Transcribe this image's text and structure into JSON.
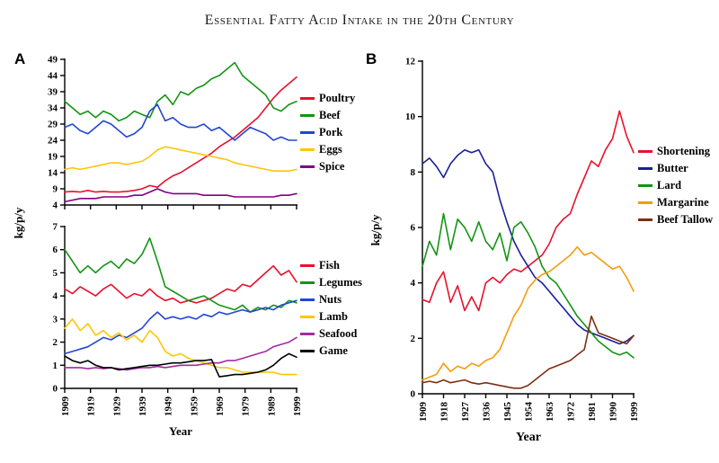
{
  "title": "Essential Fatty Acid Intake in the 20th Century",
  "panels": {
    "a_label": "A",
    "b_label": "B"
  },
  "colors": {
    "red": "#e8112d",
    "green": "#149414",
    "blue": "#2546d2",
    "navy": "#1a2099",
    "gold": "#fdc608",
    "orange": "#f49d0c",
    "purple": "#800080",
    "magenta": "#a12ca1",
    "black": "#000000",
    "brown": "#7d3011"
  },
  "chart_data": [
    {
      "id": "a_top",
      "panel": "A",
      "type": "line",
      "ylabel": "kg/p/y",
      "xlabel": "Year",
      "xlim": [
        1909,
        1999
      ],
      "ylim": [
        4,
        49
      ],
      "yticks": [
        4,
        9,
        14,
        19,
        24,
        29,
        34,
        39,
        44,
        49
      ],
      "xticks": [
        1909,
        1919,
        1929,
        1939,
        1949,
        1959,
        1969,
        1979,
        1989,
        1999
      ],
      "legend_position": "right",
      "grid": false,
      "x": [
        1909,
        1912,
        1915,
        1918,
        1921,
        1924,
        1927,
        1930,
        1933,
        1936,
        1939,
        1942,
        1945,
        1948,
        1951,
        1954,
        1957,
        1960,
        1963,
        1966,
        1969,
        1972,
        1975,
        1978,
        1981,
        1984,
        1987,
        1990,
        1993,
        1996,
        1999
      ],
      "series": [
        {
          "name": "Poultry",
          "color": "#e8112d",
          "values": [
            8,
            8.2,
            8,
            8.5,
            8,
            8.2,
            8,
            8,
            8.2,
            8.5,
            9,
            10,
            9.5,
            11.5,
            13,
            14,
            15.5,
            17,
            18.5,
            20,
            22,
            23.5,
            25,
            27,
            29,
            31,
            34,
            37,
            39.5,
            41.5,
            43.5
          ]
        },
        {
          "name": "Beef",
          "color": "#149414",
          "values": [
            36,
            34,
            32,
            33,
            31,
            33,
            32,
            30,
            31,
            33,
            32,
            31,
            36,
            38,
            35,
            39,
            38,
            40,
            41,
            43,
            44,
            46,
            48,
            44,
            42,
            40,
            38,
            34,
            33,
            35,
            36
          ]
        },
        {
          "name": "Pork",
          "color": "#2546d2",
          "values": [
            28,
            29,
            27,
            26,
            28,
            30,
            29,
            27,
            25,
            26,
            28,
            33,
            35,
            30,
            31,
            29,
            28,
            28,
            29,
            27,
            28,
            26,
            24,
            26,
            28,
            27,
            26,
            24,
            25,
            24,
            24
          ]
        },
        {
          "name": "Eggs",
          "color": "#fdc608",
          "values": [
            15,
            15.5,
            15,
            15.5,
            16,
            16.5,
            17,
            17,
            16.5,
            17,
            17.5,
            19,
            21,
            22,
            21.5,
            21,
            20.5,
            20,
            19.5,
            19,
            18.5,
            18,
            17,
            16.5,
            16,
            15.5,
            15,
            14.5,
            14.5,
            14.5,
            15
          ]
        },
        {
          "name": "Spice",
          "color": "#800080",
          "values": [
            5,
            5.5,
            6,
            6,
            6,
            6.5,
            6.5,
            6.5,
            6.5,
            7,
            7,
            8,
            9,
            8,
            7.5,
            7.5,
            7.5,
            7.5,
            7,
            7,
            7,
            7,
            6.5,
            6.5,
            6.5,
            6.5,
            6.5,
            6.5,
            7,
            7,
            7.5
          ]
        }
      ]
    },
    {
      "id": "a_bottom",
      "panel": "A",
      "type": "line",
      "ylabel": "kg/p/y",
      "xlabel": "Year",
      "xlim": [
        1909,
        1999
      ],
      "ylim": [
        0,
        7
      ],
      "yticks": [
        0,
        1,
        2,
        3,
        4,
        5,
        6,
        7
      ],
      "xticks": [
        1909,
        1919,
        1929,
        1939,
        1949,
        1959,
        1969,
        1979,
        1989,
        1999
      ],
      "legend_position": "right",
      "grid": false,
      "x": [
        1909,
        1912,
        1915,
        1918,
        1921,
        1924,
        1927,
        1930,
        1933,
        1936,
        1939,
        1942,
        1945,
        1948,
        1951,
        1954,
        1957,
        1960,
        1963,
        1966,
        1969,
        1972,
        1975,
        1978,
        1981,
        1984,
        1987,
        1990,
        1993,
        1996,
        1999
      ],
      "series": [
        {
          "name": "Fish",
          "color": "#e8112d",
          "values": [
            4.3,
            4.1,
            4.4,
            4.2,
            4.0,
            4.3,
            4.5,
            4.2,
            3.9,
            4.1,
            4.0,
            4.3,
            4.0,
            3.8,
            3.9,
            3.7,
            3.8,
            3.7,
            3.8,
            3.9,
            4.1,
            4.3,
            4.2,
            4.5,
            4.4,
            4.7,
            5.0,
            5.3,
            4.9,
            5.1,
            4.6
          ]
        },
        {
          "name": "Legumes",
          "color": "#149414",
          "values": [
            6.0,
            5.5,
            5.0,
            5.3,
            5.0,
            5.3,
            5.5,
            5.2,
            5.6,
            5.4,
            5.8,
            6.5,
            5.5,
            4.4,
            4.2,
            4.0,
            3.8,
            3.9,
            4.0,
            3.8,
            3.6,
            3.5,
            3.4,
            3.6,
            3.3,
            3.5,
            3.4,
            3.6,
            3.5,
            3.8,
            3.7
          ]
        },
        {
          "name": "Nuts",
          "color": "#2546d2",
          "values": [
            1.5,
            1.6,
            1.7,
            1.8,
            2.0,
            2.2,
            2.1,
            2.3,
            2.2,
            2.4,
            2.6,
            3.0,
            3.3,
            3.0,
            3.1,
            3.0,
            3.1,
            3.0,
            3.2,
            3.1,
            3.3,
            3.2,
            3.3,
            3.4,
            3.3,
            3.4,
            3.5,
            3.4,
            3.6,
            3.7,
            3.8
          ]
        },
        {
          "name": "Lamb",
          "color": "#fdc608",
          "values": [
            2.6,
            3.0,
            2.5,
            2.8,
            2.3,
            2.5,
            2.2,
            2.4,
            2.1,
            2.3,
            2.0,
            2.5,
            2.2,
            1.6,
            1.4,
            1.5,
            1.3,
            1.2,
            1.1,
            1.0,
            0.9,
            0.9,
            0.8,
            0.7,
            0.7,
            0.7,
            0.7,
            0.7,
            0.6,
            0.6,
            0.6
          ]
        },
        {
          "name": "Seafood",
          "color": "#a12ca1",
          "values": [
            0.9,
            0.9,
            0.9,
            0.85,
            0.9,
            0.85,
            0.9,
            0.85,
            0.8,
            0.85,
            0.9,
            0.9,
            0.95,
            0.9,
            0.95,
            1.0,
            1.0,
            1.0,
            1.05,
            1.1,
            1.1,
            1.2,
            1.2,
            1.3,
            1.4,
            1.5,
            1.6,
            1.8,
            1.9,
            2.0,
            2.2
          ]
        },
        {
          "name": "Game",
          "color": "#000000",
          "values": [
            1.4,
            1.2,
            1.1,
            1.2,
            1.0,
            0.9,
            0.9,
            0.8,
            0.85,
            0.9,
            0.95,
            1.0,
            1.0,
            1.05,
            1.1,
            1.1,
            1.15,
            1.2,
            1.2,
            1.25,
            0.5,
            0.55,
            0.6,
            0.6,
            0.65,
            0.7,
            0.8,
            1.0,
            1.3,
            1.5,
            1.35
          ]
        }
      ]
    },
    {
      "id": "b_main",
      "panel": "B",
      "type": "line",
      "ylabel": "kg/p/y",
      "xlabel": "Year",
      "xlim": [
        1909,
        1999
      ],
      "ylim": [
        0,
        12
      ],
      "yticks": [
        0,
        2,
        4,
        6,
        8,
        10,
        12
      ],
      "xticks": [
        1909,
        1918,
        1927,
        1936,
        1945,
        1954,
        1963,
        1972,
        1981,
        1990,
        1999
      ],
      "legend_position": "right",
      "grid": false,
      "x": [
        1909,
        1912,
        1915,
        1918,
        1921,
        1924,
        1927,
        1930,
        1933,
        1936,
        1939,
        1942,
        1945,
        1948,
        1951,
        1954,
        1957,
        1960,
        1963,
        1966,
        1969,
        1972,
        1975,
        1978,
        1981,
        1984,
        1987,
        1990,
        1993,
        1996,
        1999
      ],
      "series": [
        {
          "name": "Shortening",
          "color": "#e8112d",
          "values": [
            3.4,
            3.3,
            4.0,
            4.4,
            3.3,
            3.9,
            3.0,
            3.5,
            3.0,
            4.0,
            4.2,
            4.0,
            4.3,
            4.5,
            4.4,
            4.6,
            4.8,
            5.0,
            5.4,
            6.0,
            6.3,
            6.5,
            7.2,
            7.8,
            8.4,
            8.2,
            8.8,
            9.2,
            10.2,
            9.3,
            8.7
          ]
        },
        {
          "name": "Butter",
          "color": "#1a2099",
          "values": [
            8.3,
            8.5,
            8.2,
            7.8,
            8.3,
            8.6,
            8.8,
            8.7,
            8.8,
            8.3,
            8.0,
            7.0,
            6.2,
            5.5,
            5.0,
            4.6,
            4.2,
            4.0,
            3.7,
            3.4,
            3.1,
            2.8,
            2.5,
            2.3,
            2.2,
            2.1,
            2.0,
            1.9,
            1.8,
            1.9,
            2.1
          ]
        },
        {
          "name": "Lard",
          "color": "#149414",
          "values": [
            4.6,
            5.5,
            5.0,
            6.5,
            5.2,
            6.3,
            6.0,
            5.5,
            6.2,
            5.5,
            5.2,
            5.8,
            4.8,
            6.0,
            6.2,
            5.8,
            5.3,
            4.6,
            4.2,
            4.0,
            3.6,
            3.2,
            2.8,
            2.5,
            2.2,
            1.9,
            1.7,
            1.5,
            1.4,
            1.5,
            1.3
          ]
        },
        {
          "name": "Margarine",
          "color": "#f49d0c",
          "values": [
            0.5,
            0.6,
            0.7,
            1.1,
            0.8,
            1.0,
            0.9,
            1.1,
            1.0,
            1.2,
            1.3,
            1.6,
            2.2,
            2.8,
            3.2,
            3.8,
            4.1,
            4.3,
            4.4,
            4.6,
            4.8,
            5.0,
            5.3,
            5.0,
            5.1,
            4.9,
            4.7,
            4.5,
            4.6,
            4.2,
            3.7
          ]
        },
        {
          "name": "Beef Tallow",
          "color": "#7d3011",
          "values": [
            0.4,
            0.45,
            0.4,
            0.5,
            0.4,
            0.45,
            0.5,
            0.4,
            0.35,
            0.4,
            0.35,
            0.3,
            0.25,
            0.2,
            0.2,
            0.3,
            0.5,
            0.7,
            0.9,
            1.0,
            1.1,
            1.2,
            1.4,
            1.6,
            2.8,
            2.2,
            2.1,
            2.0,
            1.9,
            1.8,
            2.1
          ]
        }
      ]
    }
  ]
}
